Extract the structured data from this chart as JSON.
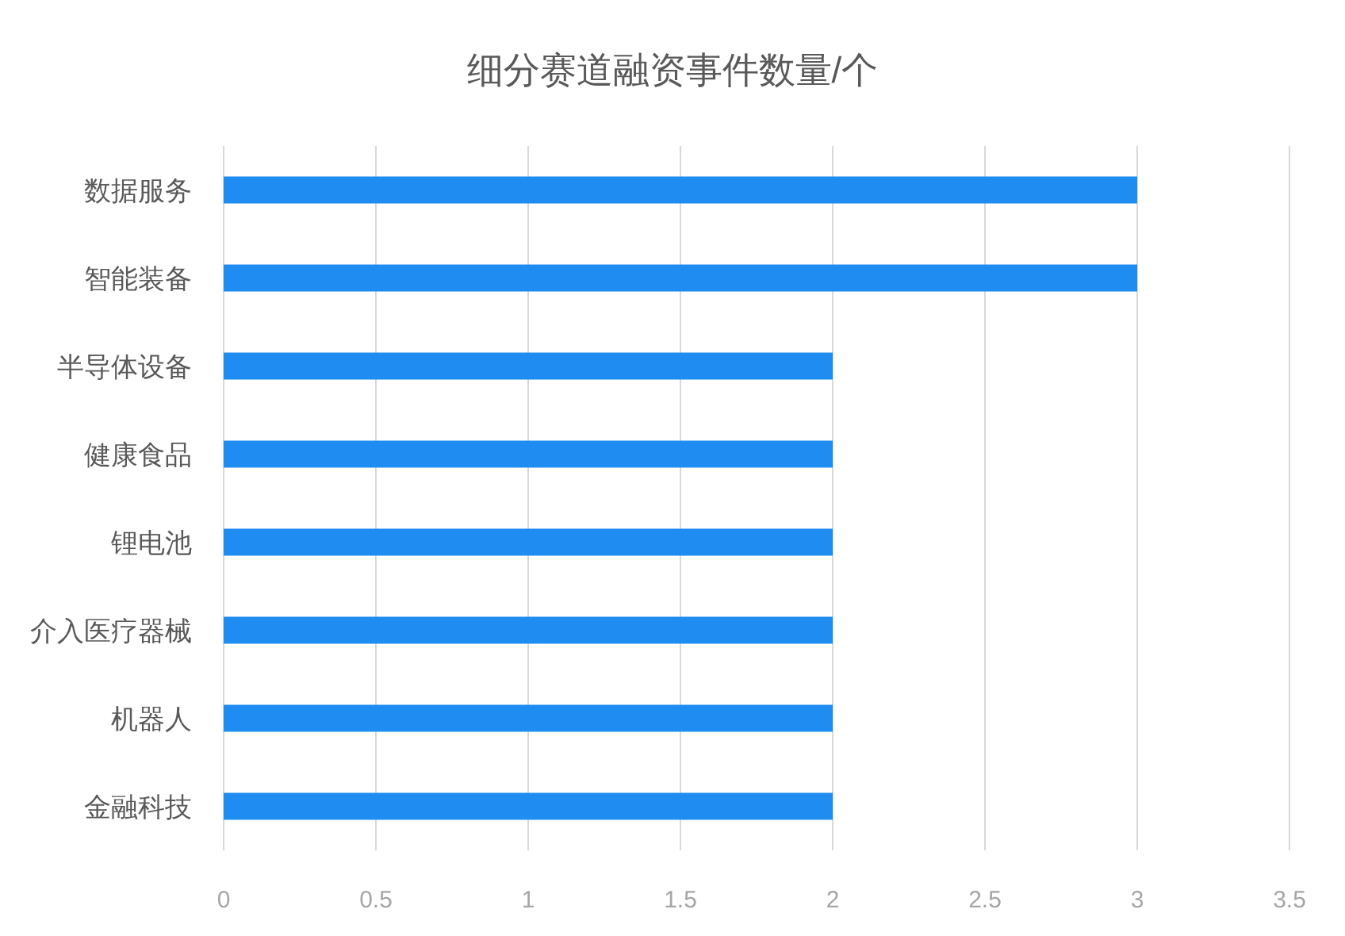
{
  "chart_data": {
    "type": "bar",
    "orientation": "horizontal",
    "title": "细分赛道融资事件数量/个",
    "categories": [
      "数据服务",
      "智能装备",
      "半导体设备",
      "健康食品",
      "锂电池",
      "介入医疗器械",
      "机器人",
      "金融科技"
    ],
    "values": [
      3,
      3,
      2,
      2,
      2,
      2,
      2,
      2
    ],
    "color": "#1e8cf0",
    "xlim": [
      0,
      3.5
    ],
    "xticks": [
      0,
      0.5,
      1,
      1.5,
      2,
      2.5,
      3,
      3.5
    ],
    "grid": "x"
  }
}
